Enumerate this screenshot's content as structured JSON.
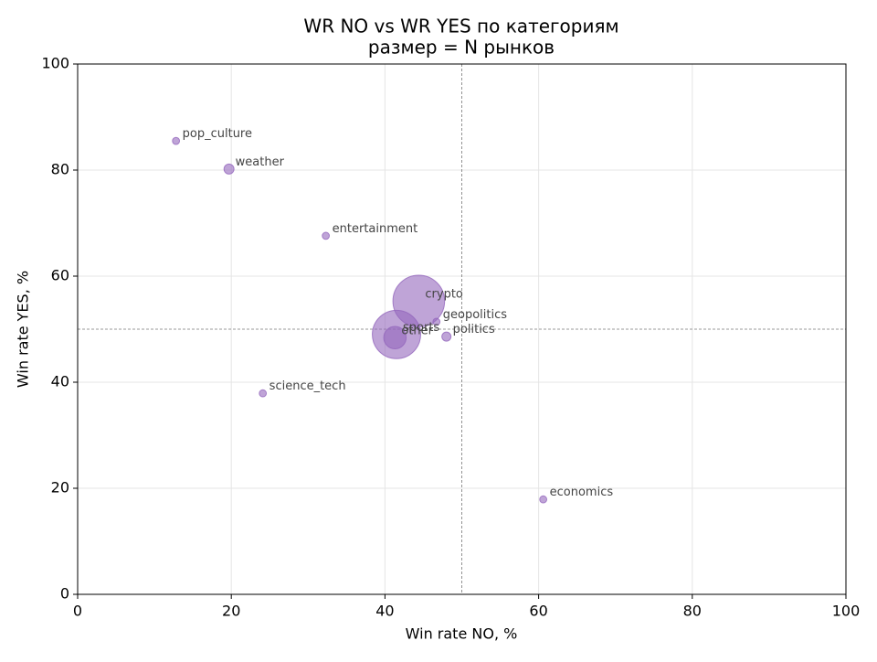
{
  "chart_data": {
    "type": "scatter",
    "title": "WR NO vs WR YES по категориям",
    "subtitle": "размер = N рынков",
    "x_label": "Win rate NO, %",
    "y_label": "Win rate YES, %",
    "xlim": [
      0,
      100
    ],
    "ylim": [
      0,
      100
    ],
    "xticks": [
      0,
      20,
      40,
      60,
      80,
      100
    ],
    "yticks": [
      0,
      20,
      40,
      60,
      80,
      100
    ],
    "grid": true,
    "vline": 50,
    "hline": 50,
    "color": "#9467bd",
    "labels": [
      "pop_culture",
      "weather",
      "entertainment",
      "crypto",
      "geopolitics",
      "politics",
      "sports",
      "other",
      "science_tech",
      "economics"
    ],
    "x": [
      12.8,
      19.7,
      32.3,
      44.4,
      46.7,
      48.0,
      41.5,
      41.3,
      24.1,
      60.6
    ],
    "y": [
      85.5,
      80.2,
      67.6,
      55.3,
      51.4,
      48.6,
      49.0,
      48.4,
      37.9,
      17.9
    ],
    "sizes": [
      15,
      30,
      15,
      800,
      15,
      25,
      700,
      150,
      15,
      15
    ]
  }
}
